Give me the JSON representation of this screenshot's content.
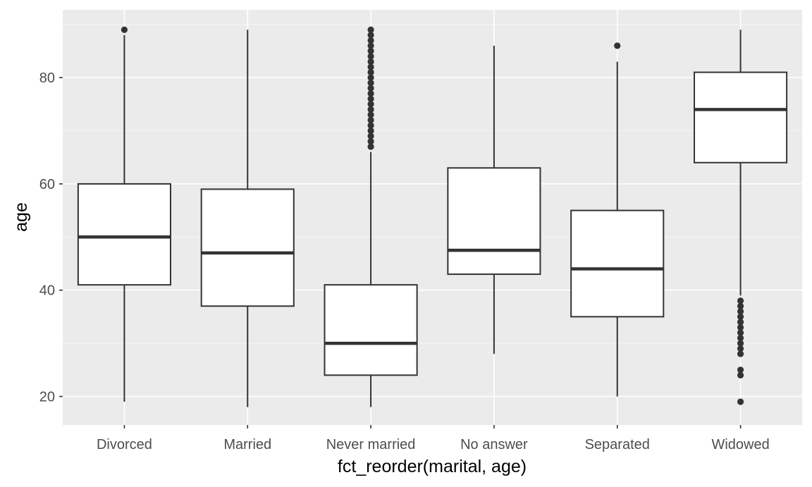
{
  "chart_data": {
    "type": "boxplot",
    "title": "",
    "xlabel": "fct_reorder(marital, age)",
    "ylabel": "age",
    "ylim": [
      15,
      91
    ],
    "y_ticks": [
      20,
      40,
      60,
      80
    ],
    "grid": true,
    "categories": [
      "Divorced",
      "Married",
      "Never married",
      "No answer",
      "Separated",
      "Widowed"
    ],
    "boxes": [
      {
        "category": "Divorced",
        "whisker_low": 19,
        "q1": 41,
        "median": 50,
        "q3": 60,
        "whisker_high": 88,
        "outliers": [
          89
        ]
      },
      {
        "category": "Married",
        "whisker_low": 18,
        "q1": 37,
        "median": 47,
        "q3": 59,
        "whisker_high": 89,
        "outliers": []
      },
      {
        "category": "Never married",
        "whisker_low": 18,
        "q1": 24,
        "median": 30,
        "q3": 41,
        "whisker_high": 66,
        "outliers": [
          67,
          68,
          69,
          70,
          71,
          72,
          73,
          74,
          75,
          76,
          77,
          78,
          79,
          80,
          81,
          82,
          83,
          84,
          85,
          86,
          87,
          88,
          89
        ]
      },
      {
        "category": "No answer",
        "whisker_low": 28,
        "q1": 43,
        "median": 47.5,
        "q3": 63,
        "whisker_high": 86,
        "outliers": []
      },
      {
        "category": "Separated",
        "whisker_low": 20,
        "q1": 35,
        "median": 44,
        "q3": 55,
        "whisker_high": 83,
        "outliers": [
          86
        ]
      },
      {
        "category": "Widowed",
        "whisker_low": 39,
        "q1": 64,
        "median": 74,
        "q3": 81,
        "whisker_high": 89,
        "outliers": [
          19,
          24,
          25,
          28,
          29,
          30,
          31,
          32,
          33,
          34,
          35,
          36,
          37,
          38
        ]
      }
    ]
  },
  "colors": {
    "panel_background": "#ebebeb",
    "grid_major": "#ffffff",
    "box_fill": "#ffffff",
    "box_stroke": "#333333",
    "tick_text": "#4d4d4d"
  }
}
